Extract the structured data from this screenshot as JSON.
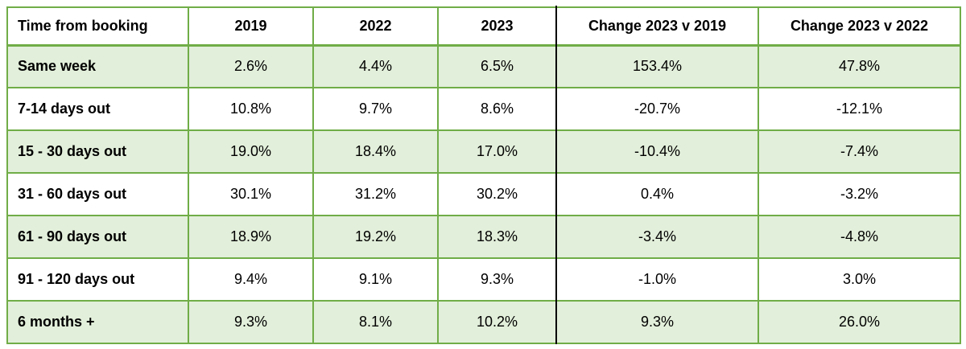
{
  "colors": {
    "border_green": "#70AD47",
    "fill_green": "#E2EFDA",
    "header_fill": "#FFFFFF",
    "divider_black": "#000000",
    "text": "#000000"
  },
  "chart_data": {
    "type": "table",
    "title": "",
    "columns": [
      "Time from booking",
      "2019",
      "2022",
      "2023",
      "Change 2023 v 2019",
      "Change 2023 v 2022"
    ],
    "rows": [
      {
        "label": "Same week",
        "values": [
          "2.6%",
          "4.4%",
          "6.5%",
          "153.4%",
          "47.8%"
        ]
      },
      {
        "label": "7-14 days out",
        "values": [
          "10.8%",
          "9.7%",
          "8.6%",
          "-20.7%",
          "-12.1%"
        ]
      },
      {
        "label": "15 - 30 days out",
        "values": [
          "19.0%",
          "18.4%",
          "17.0%",
          "-10.4%",
          "-7.4%"
        ]
      },
      {
        "label": "31 - 60 days out",
        "values": [
          "30.1%",
          "31.2%",
          "30.2%",
          "0.4%",
          "-3.2%"
        ]
      },
      {
        "label": "61 - 90 days out",
        "values": [
          "18.9%",
          "19.2%",
          "18.3%",
          "-3.4%",
          "-4.8%"
        ]
      },
      {
        "label": "91 - 120 days out",
        "values": [
          "9.4%",
          "9.1%",
          "9.3%",
          "-1.0%",
          "3.0%"
        ]
      },
      {
        "label": "6 months +",
        "values": [
          "9.3%",
          "8.1%",
          "10.2%",
          "9.3%",
          "26.0%"
        ]
      }
    ]
  }
}
